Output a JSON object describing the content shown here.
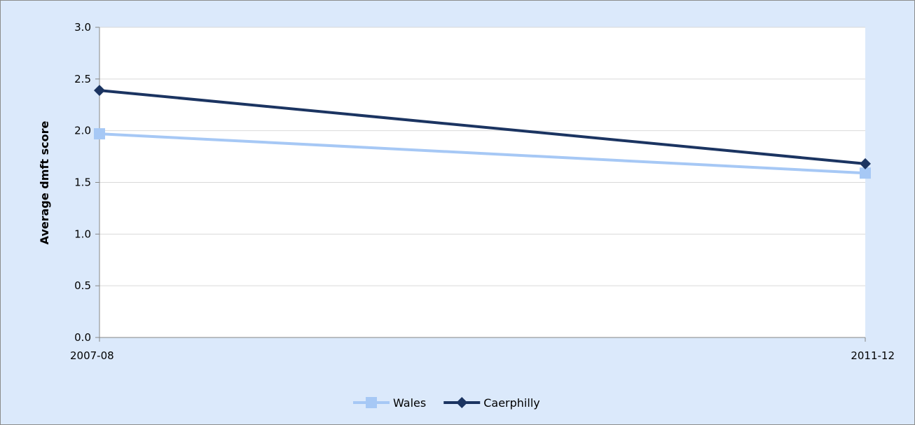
{
  "chart_data": {
    "type": "line",
    "title": "",
    "xlabel": "",
    "ylabel": "Average dmft score",
    "categories": [
      "2007-08",
      "2011-12"
    ],
    "ylim": [
      0,
      3
    ],
    "yticks": [
      0,
      0.5,
      1,
      1.5,
      2,
      2.5,
      3
    ],
    "ytick_labels": [
      "0.0",
      "0.5",
      "1.0",
      "1.5",
      "2.0",
      "2.5",
      "3.0"
    ],
    "grid": true,
    "legend_position": "bottom",
    "series": [
      {
        "name": "Wales",
        "values": [
          1.97,
          1.59
        ],
        "color": "#a6c8f5",
        "marker": "square"
      },
      {
        "name": "Caerphilly",
        "values": [
          2.39,
          1.68
        ],
        "color": "#1b3461",
        "marker": "diamond"
      }
    ]
  }
}
